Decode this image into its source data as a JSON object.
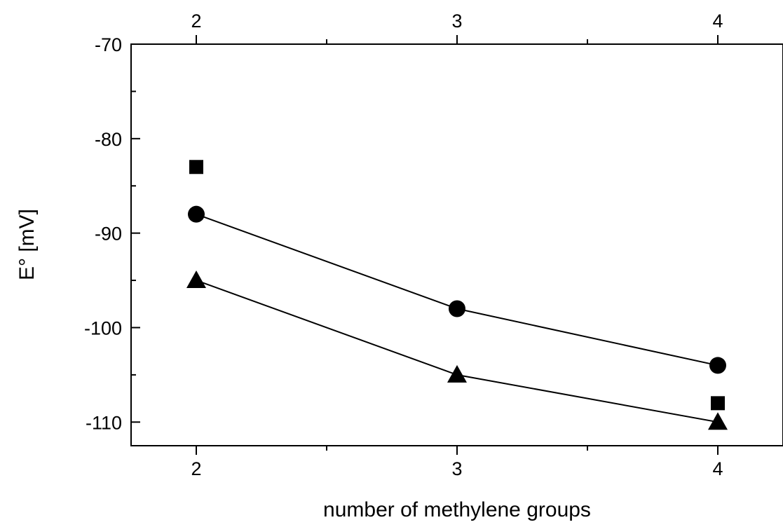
{
  "chart_data": {
    "type": "scatter",
    "title": "",
    "xlabel": "number of methylene groups",
    "ylabel": "E° [mV]",
    "xlim": [
      1.75,
      4.25
    ],
    "ylim": [
      -112.5,
      -70
    ],
    "x_ticks": [
      2,
      3,
      4
    ],
    "x_tick_labels": [
      "2",
      "3",
      "4"
    ],
    "x_top_tick_labels": [
      "2",
      "3",
      "4"
    ],
    "y_ticks": [
      -70,
      -80,
      -90,
      -100,
      -110
    ],
    "y_tick_labels": [
      "-70",
      "-80",
      "-90",
      "-100",
      "-110"
    ],
    "grid": false,
    "legend": "none",
    "series": [
      {
        "marker": "square",
        "connected": false,
        "x": [
          2,
          4
        ],
        "y": [
          -83,
          -108
        ]
      },
      {
        "marker": "circle",
        "connected": true,
        "x": [
          2,
          3,
          4
        ],
        "y": [
          -88,
          -98,
          -104
        ]
      },
      {
        "marker": "triangle",
        "connected": true,
        "x": [
          2,
          3,
          4
        ],
        "y": [
          -95,
          -105,
          -110
        ]
      }
    ],
    "colors": {
      "marker": "#000000",
      "line": "#000000",
      "axis": "#000000",
      "background": "#ffffff"
    }
  }
}
